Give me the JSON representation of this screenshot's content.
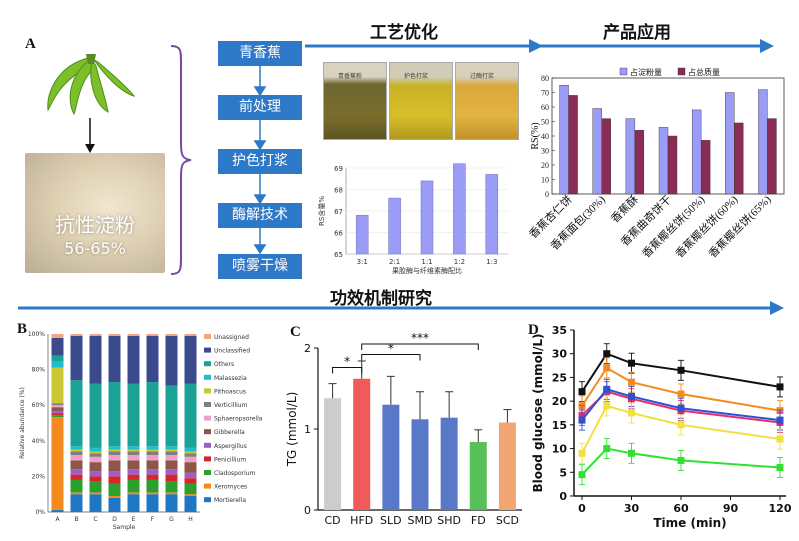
{
  "panels": {
    "a": "A",
    "b": "B",
    "c": "C",
    "d": "D"
  },
  "headers": {
    "process": "工艺优化",
    "application": "产品应用",
    "mechanism": "功效机制研究"
  },
  "starch_label": {
    "name": "抗性淀粉",
    "range": "56-65%"
  },
  "steps": [
    "青香蕉",
    "前处理",
    "护色打浆",
    "酶解技术",
    "喷雾干燥"
  ],
  "jars": [
    "青香蕉粉",
    "护色打浆",
    "过酶打浆"
  ],
  "colors": {
    "step": "#2e78c8",
    "arrow": "#2e78c8",
    "bracket": "#7b4aa0",
    "bar_light": "#9b9cf5",
    "bar_dark": "#8a2c55"
  },
  "chart_data": [
    {
      "type": "bar",
      "title": "",
      "xlabel": "果胶酶与纤维素酶配比",
      "ylabel": "RS含量%",
      "categories": [
        "3:1",
        "2:1",
        "1:1",
        "1:2",
        "1:3"
      ],
      "values": [
        66.8,
        67.6,
        68.4,
        69.2,
        68.7
      ],
      "ylim": [
        65,
        69
      ],
      "yticks": [
        65,
        66,
        67,
        68,
        69
      ]
    },
    {
      "type": "bar",
      "xlabel": "",
      "ylabel": "RS(%)",
      "categories": [
        "香蕉杏仁饼",
        "香蕉面包(30%)",
        "香蕉酥",
        "香蕉曲奇饼干",
        "香蕉椰丝饼(50%)",
        "香蕉椰丝饼(60%)",
        "香蕉椰丝饼(65%)"
      ],
      "series": [
        {
          "name": "占淀粉量",
          "values": [
            75,
            59,
            52,
            46,
            58,
            70,
            72
          ]
        },
        {
          "name": "占总质量",
          "values": [
            68,
            52,
            44,
            40,
            37,
            49,
            52
          ]
        }
      ],
      "ylim": [
        0,
        80
      ],
      "yticks": [
        0,
        10,
        20,
        30,
        40,
        50,
        60,
        70,
        80
      ],
      "legend": "top"
    },
    {
      "type": "bar",
      "stacked": true,
      "xlabel": "Sample",
      "ylabel": "Relative abundance (%)",
      "categories": [
        "A",
        "B",
        "C",
        "D",
        "E",
        "F",
        "G",
        "H"
      ],
      "ylim": [
        0,
        100
      ],
      "yticks": [
        "0%",
        "20%",
        "40%",
        "60%",
        "80%",
        "100%"
      ],
      "series": [
        {
          "name": "Mortierella",
          "color": "#1f77c4",
          "values": [
            1,
            10,
            10,
            8,
            10,
            10,
            10,
            9
          ]
        },
        {
          "name": "Xeromyces",
          "color": "#f28a1e",
          "values": [
            47,
            1,
            1,
            1,
            1,
            1,
            1,
            1
          ]
        },
        {
          "name": "Cladosporium",
          "color": "#2ca02c",
          "values": [
            1,
            7,
            6,
            7,
            7,
            7,
            6,
            6
          ]
        },
        {
          "name": "Penicillium",
          "color": "#d62728",
          "values": [
            1,
            3,
            3,
            4,
            3,
            3,
            4,
            3
          ]
        },
        {
          "name": "Aspergillus",
          "color": "#a05cc8",
          "values": [
            1,
            3,
            3,
            3,
            3,
            3,
            3,
            3
          ]
        },
        {
          "name": "Gibberella",
          "color": "#8c564b",
          "values": [
            2,
            5,
            5,
            6,
            5,
            5,
            5,
            6
          ]
        },
        {
          "name": "Sphaeropsorella",
          "color": "#f0a0c8",
          "values": [
            1,
            3,
            3,
            3,
            3,
            3,
            3,
            3
          ]
        },
        {
          "name": "Verticillium",
          "color": "#7f7f7f",
          "values": [
            1,
            2,
            2,
            2,
            2,
            2,
            2,
            2
          ]
        },
        {
          "name": "Pithoascus",
          "color": "#c8c832",
          "values": [
            18,
            1,
            1,
            1,
            1,
            1,
            1,
            1
          ]
        },
        {
          "name": "Malassezia",
          "color": "#1fbecf",
          "values": [
            3,
            2,
            2,
            2,
            2,
            2,
            2,
            2
          ]
        },
        {
          "name": "Others",
          "color": "#1aa394",
          "values": [
            3,
            37,
            36,
            36,
            35,
            36,
            34,
            36
          ]
        },
        {
          "name": "Unclassified",
          "color": "#3b4a8c",
          "values": [
            9,
            25,
            27,
            26,
            27,
            26,
            28,
            27
          ]
        },
        {
          "name": "Unassigned",
          "color": "#f4a582",
          "values": [
            2,
            1,
            1,
            1,
            1,
            1,
            1,
            1
          ]
        }
      ]
    },
    {
      "type": "bar",
      "xlabel": "",
      "ylabel": "TG (mmol/L)",
      "categories": [
        "CD",
        "HFD",
        "SLD",
        "SMD",
        "SHD",
        "FD",
        "SCD"
      ],
      "values": [
        1.38,
        1.62,
        1.3,
        1.12,
        1.14,
        0.84,
        1.08
      ],
      "errors": [
        0.18,
        0.22,
        0.35,
        0.34,
        0.32,
        0.15,
        0.16
      ],
      "colors": [
        "#cccccc",
        "#f05a5a",
        "#5a78c8",
        "#5a78c8",
        "#5a78c8",
        "#58c058",
        "#f4a574"
      ],
      "ylim": [
        0,
        2
      ],
      "yticks": [
        0,
        1,
        2
      ],
      "significance": [
        "*",
        "*",
        "***"
      ]
    },
    {
      "type": "line",
      "xlabel": "Time  (min)",
      "ylabel": "Blood glucose (mmol/L)",
      "x": [
        0,
        15,
        30,
        60,
        120
      ],
      "xticks": [
        0,
        30,
        60,
        90,
        120
      ],
      "ylim": [
        0,
        35
      ],
      "yticks": [
        0,
        5,
        10,
        15,
        20,
        25,
        30,
        35
      ],
      "series": [
        {
          "color": "#111111",
          "values": [
            22,
            30,
            28,
            26.5,
            23
          ]
        },
        {
          "color": "#f58a1e",
          "values": [
            19,
            27,
            24,
            21.5,
            18
          ]
        },
        {
          "color": "#e03070",
          "values": [
            17,
            22,
            20.5,
            18,
            15.5
          ]
        },
        {
          "color": "#3050d0",
          "values": [
            16,
            22.5,
            21,
            18.5,
            16
          ]
        },
        {
          "color": "#f0e040",
          "values": [
            9,
            19,
            17.5,
            15,
            12
          ]
        },
        {
          "color": "#30e030",
          "values": [
            4.5,
            10,
            9,
            7.5,
            6
          ]
        }
      ]
    }
  ]
}
